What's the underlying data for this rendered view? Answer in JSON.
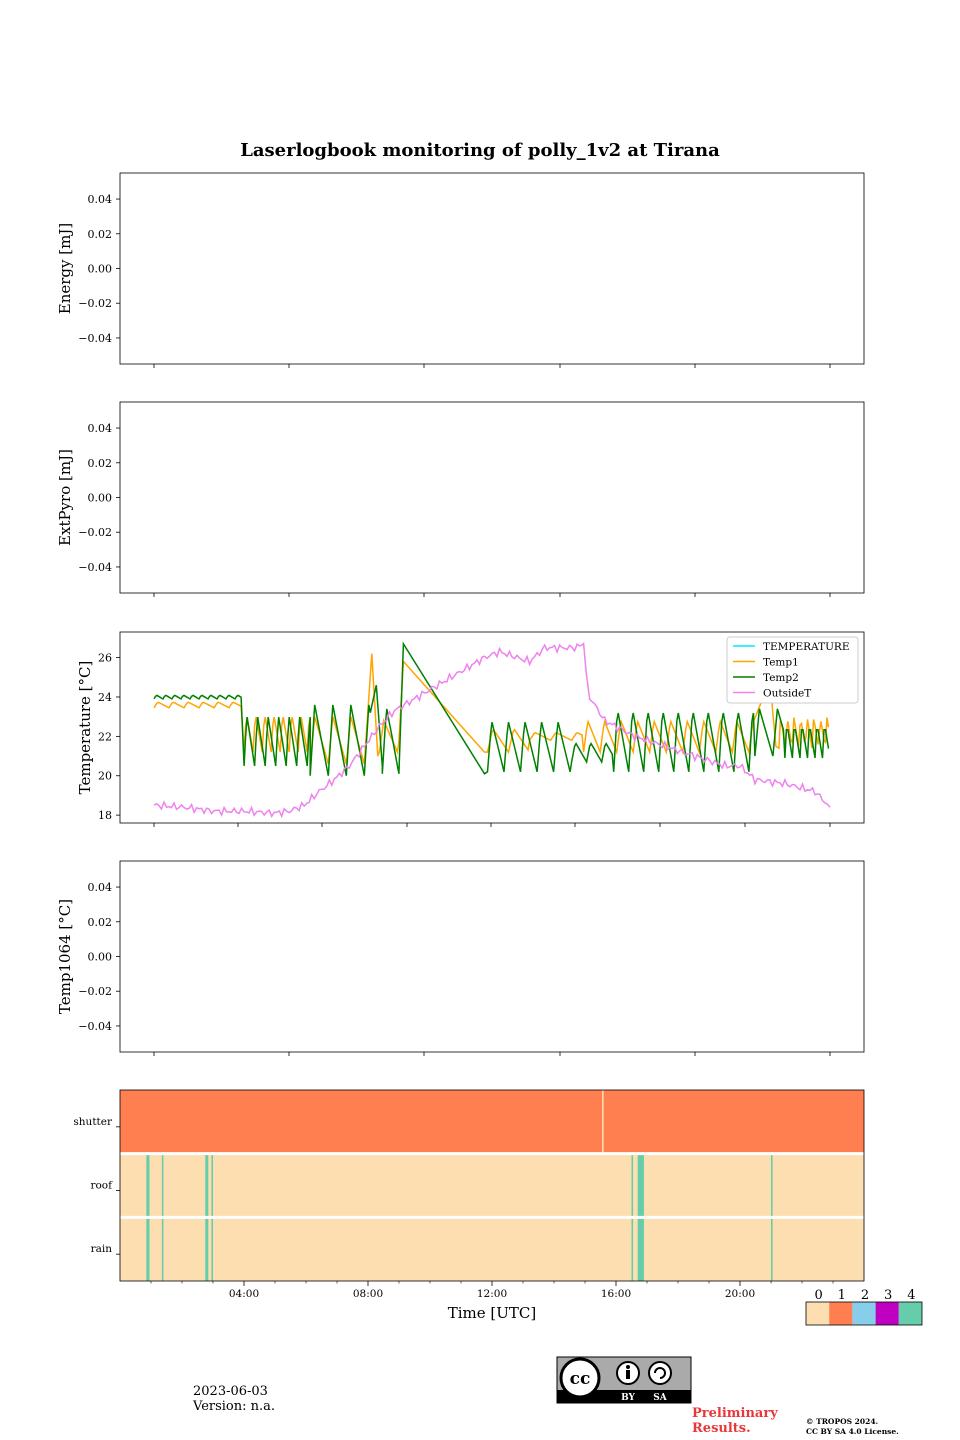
{
  "title": "Laserlogbook monitoring of polly_1v2 at Tirana",
  "colors": {
    "temperature": "#00e5ff",
    "temp1": "#ffa500",
    "temp2": "#008000",
    "outsideT": "#ee82ee",
    "flag0": "#fcdeb0",
    "flag1": "#ff7f50",
    "flag2": "#87ceeb",
    "flag3": "#c000c0",
    "flag4": "#66cdaa"
  },
  "chart_data": [
    {
      "type": "line",
      "panel": "energy",
      "ylabel": "Energy [mJ]",
      "ylim": [
        -0.055,
        0.055
      ],
      "yticks": [
        "0.04",
        "0.02",
        "0.00",
        "−0.02",
        "−0.04"
      ],
      "series": []
    },
    {
      "type": "line",
      "panel": "extpyro",
      "ylabel": "ExtPyro [mJ]",
      "ylim": [
        -0.055,
        0.055
      ],
      "yticks": [
        "0.04",
        "0.02",
        "0.00",
        "−0.02",
        "−0.04"
      ],
      "series": []
    },
    {
      "type": "line",
      "panel": "temperature",
      "ylabel": "Temperature [°C]",
      "ylim": [
        17.6,
        27.3
      ],
      "yticks": [
        "26",
        "24",
        "22",
        "20",
        "18"
      ],
      "legend": "top-right",
      "series": [
        {
          "name": "TEMPERATURE",
          "x": [],
          "y": []
        },
        {
          "name": "Temp1",
          "x": [
            0,
            2,
            3,
            3.3,
            5.5,
            7.2,
            7.4,
            8.2,
            8.3,
            11,
            12.5,
            14.5,
            15.3,
            16,
            20,
            20.7,
            21,
            22.5
          ],
          "y": [
            23.8,
            23.5,
            23.4,
            22,
            22.2,
            22,
            26.2,
            21.5,
            25.8,
            21.2,
            22,
            22,
            21,
            22,
            22.4,
            24.8,
            22.2,
            22.3
          ]
        },
        {
          "name": "Temp2",
          "x": [
            0,
            2,
            3,
            3.3,
            5.5,
            7.2,
            7.5,
            8.2,
            8.3,
            11,
            11.1,
            14,
            15.3,
            15.5,
            20,
            21,
            22.5
          ],
          "y": [
            24,
            24,
            23.8,
            21.5,
            21.6,
            21.5,
            24.6,
            21,
            26.7,
            20.1,
            21.5,
            21,
            21,
            21.8,
            21.8,
            21.7,
            21.8
          ]
        },
        {
          "name": "OutsideT",
          "x": [
            0,
            1,
            2,
            3,
            4,
            4.5,
            5,
            5.5,
            6,
            6.5,
            7,
            7.5,
            8,
            11,
            11.5,
            12.5,
            13,
            14,
            14.3,
            14.5,
            15,
            16,
            17,
            18,
            19,
            19.5,
            20,
            21,
            22,
            22.5
          ],
          "y": [
            18.5,
            18.4,
            18.2,
            18.2,
            18.1,
            18.2,
            18.5,
            19.2,
            19.8,
            20.5,
            21.5,
            22.5,
            23.3,
            26,
            26.3,
            25.8,
            26.5,
            26.5,
            26.7,
            24,
            22.8,
            22,
            21.5,
            21,
            20.5,
            20.5,
            19.8,
            19.6,
            19.2,
            18.4
          ]
        }
      ]
    },
    {
      "type": "line",
      "panel": "temp1064",
      "ylabel": "Temp1064 [°C]",
      "ylim": [
        -0.055,
        0.055
      ],
      "yticks": [
        "0.04",
        "0.02",
        "0.00",
        "−0.02",
        "−0.04"
      ],
      "series": []
    },
    {
      "type": "heatmap",
      "panel": "flags",
      "rows": [
        "shutter",
        "roof",
        "rain"
      ],
      "xlabel": "Time [UTC]",
      "xticks": [
        "04:00",
        "08:00",
        "12:00",
        "16:00",
        "20:00"
      ],
      "xlim_hours": [
        0,
        24
      ],
      "base_values": [
        1,
        0,
        0
      ],
      "events": [
        {
          "row": 0,
          "start": 15.55,
          "end": 15.6,
          "value": 0
        },
        {
          "row": 1,
          "start": 0.85,
          "end": 0.95,
          "value": 4
        },
        {
          "row": 1,
          "start": 1.35,
          "end": 1.4,
          "value": 4
        },
        {
          "row": 1,
          "start": 2.75,
          "end": 2.85,
          "value": 4
        },
        {
          "row": 1,
          "start": 2.95,
          "end": 3.0,
          "value": 4
        },
        {
          "row": 1,
          "start": 16.5,
          "end": 16.55,
          "value": 4
        },
        {
          "row": 1,
          "start": 16.7,
          "end": 16.9,
          "value": 4
        },
        {
          "row": 1,
          "start": 21.0,
          "end": 21.05,
          "value": 4
        },
        {
          "row": 2,
          "start": 0.85,
          "end": 0.95,
          "value": 4
        },
        {
          "row": 2,
          "start": 1.35,
          "end": 1.4,
          "value": 4
        },
        {
          "row": 2,
          "start": 2.75,
          "end": 2.85,
          "value": 4
        },
        {
          "row": 2,
          "start": 2.95,
          "end": 3.0,
          "value": 4
        },
        {
          "row": 2,
          "start": 16.5,
          "end": 16.55,
          "value": 4
        },
        {
          "row": 2,
          "start": 16.7,
          "end": 16.9,
          "value": 4
        },
        {
          "row": 2,
          "start": 21.0,
          "end": 21.05,
          "value": 4
        }
      ],
      "colorbar_labels": [
        "0",
        "1",
        "2",
        "3",
        "4"
      ]
    }
  ],
  "footer": {
    "date": "2023-06-03",
    "version": "Version: n.a.",
    "license_badge": [
      "BY",
      "SA"
    ],
    "preliminary": "Preliminary Results.",
    "copyright_line1": "© TROPOS 2024.",
    "copyright_line2": "CC BY SA 4.0 License."
  }
}
